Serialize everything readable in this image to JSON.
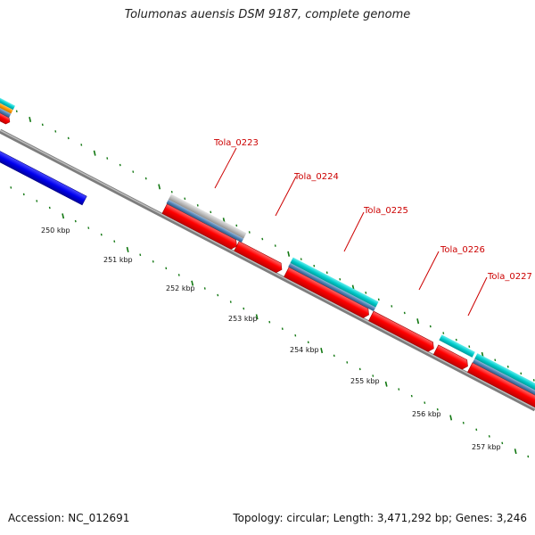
{
  "title": "Tolumonas auensis DSM 9187, complete genome",
  "footer": {
    "accession": "Accession: NC_012691",
    "summary": "Topology: circular; Length: 3,471,292 bp; Genes: 3,246"
  },
  "genes": [
    {
      "label": "Tola_0223"
    },
    {
      "label": "Tola_0224"
    },
    {
      "label": "Tola_0225"
    },
    {
      "label": "Tola_0226"
    },
    {
      "label": "Tola_0227"
    }
  ],
  "ticks": [
    "250 kbp",
    "251 kbp",
    "252 kbp",
    "253 kbp",
    "254 kbp",
    "255 kbp",
    "256 kbp",
    "257 kbp"
  ],
  "colors": {
    "backbone": "#8a8a8a",
    "cds_red": "#ff0000",
    "cds_blue": "#0000ee",
    "feature_cyan": "#00cccc",
    "feature_steel": "#4f7fb0",
    "feature_gray": "#bbbbbb",
    "feature_orange": "#ff9900",
    "tick_green": "#117711",
    "label_red": "#cc0000"
  }
}
